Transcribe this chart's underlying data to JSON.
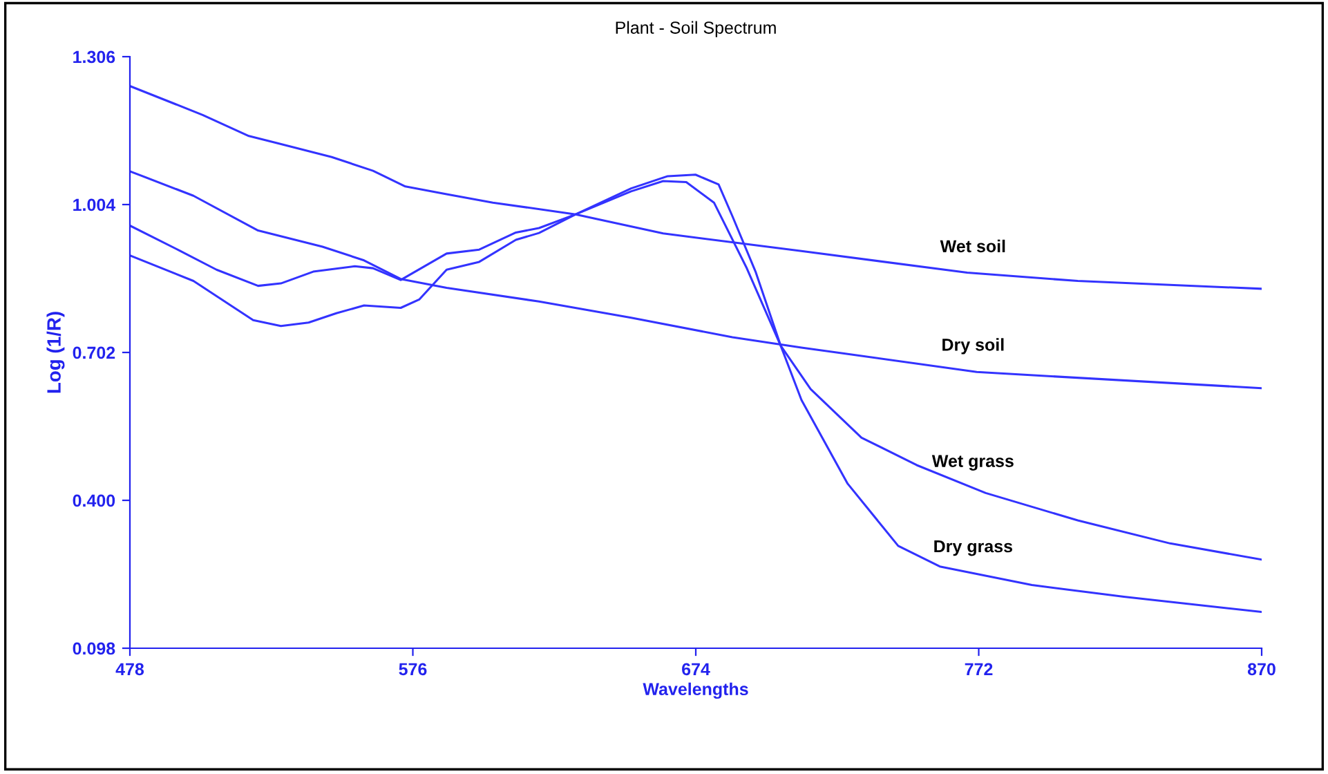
{
  "chart_data": {
    "type": "line",
    "title": "Plant - Soil Spectrum",
    "xlabel": "Wavelengths",
    "ylabel": "Log (1/R)",
    "xlim": [
      478,
      870
    ],
    "xticks": [
      478,
      576,
      674,
      772,
      870
    ],
    "ylim": [
      0.098,
      1.306
    ],
    "yticks": [
      0.098,
      {
        "value": 0.4,
        "label": "0.400"
      },
      0.702,
      1.004,
      1.306
    ],
    "grid": false,
    "legend": false,
    "marker": "none",
    "line_style": "solid",
    "series": [
      {
        "name": "Wet soil",
        "color": "#3333ff",
        "x": [
          478,
          503.2,
          519.2,
          528.7,
          547.9,
          562.2,
          573.4,
          587.7,
          603.7,
          632.4,
          662.7,
          710.6,
          768.0,
          806.3,
          870
        ],
        "values": [
          1.246,
          1.187,
          1.144,
          1.13,
          1.101,
          1.073,
          1.041,
          1.025,
          1.008,
          0.984,
          0.945,
          0.909,
          0.865,
          0.848,
          0.832
        ]
      },
      {
        "name": "Dry soil",
        "color": "#3333ff",
        "x": [
          478,
          500,
          522.4,
          544.7,
          559.1,
          571.8,
          587.7,
          619.7,
          651.6,
          686.7,
          710.6,
          771.3,
          870
        ],
        "values": [
          1.072,
          1.022,
          0.951,
          0.918,
          0.89,
          0.852,
          0.834,
          0.806,
          0.773,
          0.733,
          0.712,
          0.662,
          0.629
        ]
      },
      {
        "name": "Wet grass",
        "color": "#3333ff",
        "x": [
          478,
          495.2,
          508.0,
          522.4,
          530.3,
          541.5,
          555.9,
          562.2,
          571.8,
          587.7,
          599.0,
          611.7,
          619.7,
          632.4,
          651.6,
          662.7,
          670.7,
          680.3,
          691.5,
          703.4,
          713.8,
          731.4,
          750.5,
          774.4,
          806.3,
          838.3,
          870
        ],
        "values": [
          0.961,
          0.91,
          0.871,
          0.838,
          0.843,
          0.867,
          0.878,
          0.874,
          0.85,
          0.904,
          0.912,
          0.947,
          0.956,
          0.984,
          1.031,
          1.052,
          1.05,
          1.008,
          0.876,
          0.716,
          0.627,
          0.528,
          0.472,
          0.415,
          0.359,
          0.312,
          0.279
        ]
      },
      {
        "name": "Dry grass",
        "color": "#3333ff",
        "x": [
          478,
          500,
          520.7,
          530.3,
          539.9,
          549.5,
          559.1,
          571.8,
          578.2,
          587.7,
          599.0,
          611.7,
          619.7,
          632.4,
          651.6,
          664.3,
          673.9,
          681.9,
          686.7,
          694.7,
          703.4,
          710.6,
          726.6,
          744.1,
          758.5,
          790.4,
          822.3,
          870
        ],
        "values": [
          0.9,
          0.848,
          0.768,
          0.756,
          0.763,
          0.782,
          0.798,
          0.793,
          0.81,
          0.871,
          0.887,
          0.932,
          0.946,
          0.984,
          1.037,
          1.062,
          1.065,
          1.045,
          0.98,
          0.867,
          0.716,
          0.605,
          0.434,
          0.307,
          0.265,
          0.227,
          0.203,
          0.172
        ]
      }
    ]
  }
}
